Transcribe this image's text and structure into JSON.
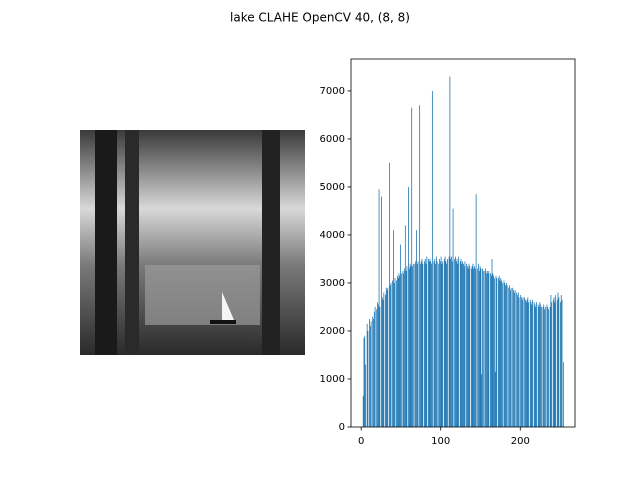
{
  "chart_data": {
    "type": "histogram",
    "title": "lake CLAHE OpenCV 40, (8, 8)",
    "color": "#1f77b4",
    "xlim": [
      -12.8,
      268.8
    ],
    "ylim": [
      0,
      7665
    ],
    "xticks": [
      0,
      100,
      200
    ],
    "yticks": [
      0,
      1000,
      2000,
      3000,
      4000,
      5000,
      6000,
      7000
    ],
    "bins": [
      0,
      1,
      2,
      3,
      4,
      5,
      6,
      7,
      8,
      9,
      10,
      11,
      12,
      13,
      14,
      15,
      16,
      17,
      18,
      19,
      20,
      21,
      22,
      23,
      24,
      25,
      26,
      27,
      28,
      29,
      30,
      31,
      32,
      33,
      34,
      35,
      36,
      37,
      38,
      39,
      40,
      41,
      42,
      43,
      44,
      45,
      46,
      47,
      48,
      49,
      50,
      51,
      52,
      53,
      54,
      55,
      56,
      57,
      58,
      59,
      60,
      61,
      62,
      63,
      64,
      65,
      66,
      67,
      68,
      69,
      70,
      71,
      72,
      73,
      74,
      75,
      76,
      77,
      78,
      79,
      80,
      81,
      82,
      83,
      84,
      85,
      86,
      87,
      88,
      89,
      90,
      91,
      92,
      93,
      94,
      95,
      96,
      97,
      98,
      99,
      100,
      101,
      102,
      103,
      104,
      105,
      106,
      107,
      108,
      109,
      110,
      111,
      112,
      113,
      114,
      115,
      116,
      117,
      118,
      119,
      120,
      121,
      122,
      123,
      124,
      125,
      126,
      127,
      128,
      129,
      130,
      131,
      132,
      133,
      134,
      135,
      136,
      137,
      138,
      139,
      140,
      141,
      142,
      143,
      144,
      145,
      146,
      147,
      148,
      149,
      150,
      151,
      152,
      153,
      154,
      155,
      156,
      157,
      158,
      159,
      160,
      161,
      162,
      163,
      164,
      165,
      166,
      167,
      168,
      169,
      170,
      171,
      172,
      173,
      174,
      175,
      176,
      177,
      178,
      179,
      180,
      181,
      182,
      183,
      184,
      185,
      186,
      187,
      188,
      189,
      190,
      191,
      192,
      193,
      194,
      195,
      196,
      197,
      198,
      199,
      200,
      201,
      202,
      203,
      204,
      205,
      206,
      207,
      208,
      209,
      210,
      211,
      212,
      213,
      214,
      215,
      216,
      217,
      218,
      219,
      220,
      221,
      222,
      223,
      224,
      225,
      226,
      227,
      228,
      229,
      230,
      231,
      232,
      233,
      234,
      235,
      236,
      237,
      238,
      239,
      240,
      241,
      242,
      243,
      244,
      245,
      246,
      247,
      248,
      249,
      250,
      251,
      252,
      253,
      254,
      255,
      256
    ],
    "counts": [
      0,
      0,
      650,
      1850,
      1900,
      1300,
      0,
      2150,
      2000,
      0,
      2250,
      2100,
      2200,
      0,
      2300,
      2250,
      2400,
      2500,
      0,
      2450,
      2600,
      2550,
      4950,
      2500,
      0,
      4800,
      2700,
      2650,
      2800,
      0,
      2750,
      2900,
      2850,
      2900,
      0,
      5500,
      2950,
      3000,
      0,
      3050,
      4100,
      3000,
      3100,
      0,
      3050,
      3150,
      3100,
      3200,
      3150,
      3800,
      3200,
      0,
      3250,
      3200,
      3300,
      4200,
      3250,
      3350,
      0,
      5000,
      3300,
      3400,
      3350,
      6650,
      3350,
      3400,
      0,
      3400,
      3450,
      4100,
      3400,
      3450,
      0,
      6700,
      3400,
      3450,
      3500,
      3400,
      0,
      3450,
      3500,
      3400,
      3550,
      0,
      3500,
      3450,
      3500,
      3450,
      3400,
      7000,
      0,
      3450,
      3500,
      3400,
      3550,
      3450,
      0,
      3400,
      3500,
      3450,
      3550,
      3400,
      3450,
      0,
      3500,
      3550,
      3450,
      3400,
      3500,
      0,
      3550,
      7300,
      3500,
      3550,
      3450,
      4550,
      0,
      3500,
      3550,
      3450,
      3500,
      3400,
      3550,
      0,
      3450,
      3500,
      3400,
      3450,
      3400,
      3350,
      3450,
      0,
      3400,
      3350,
      3300,
      3400,
      3350,
      0,
      3300,
      3350,
      3400,
      3300,
      3350,
      3300,
      4850,
      0,
      3300,
      3400,
      3250,
      3350,
      3300,
      1100,
      3300,
      3250,
      0,
      3250,
      3300,
      3200,
      3250,
      3200,
      3250,
      0,
      3200,
      3150,
      3500,
      3200,
      3150,
      3100,
      1150,
      3150,
      3100,
      0,
      3100,
      3150,
      3050,
      3100,
      3050,
      3000,
      0,
      3050,
      3000,
      2950,
      3000,
      2950,
      0,
      2900,
      2950,
      2850,
      2900,
      0,
      2900,
      2850,
      2800,
      2850,
      0,
      2800,
      2750,
      2800,
      2700,
      0,
      2750,
      2700,
      2650,
      2700,
      0,
      2700,
      2650,
      2600,
      2650,
      2700,
      2600,
      0,
      2650,
      2600,
      2550,
      2650,
      0,
      2600,
      2550,
      2500,
      2600,
      0,
      2550,
      2500,
      2600,
      2550,
      2500,
      0,
      2500,
      2550,
      2450,
      2500,
      0,
      2550,
      2500,
      2450,
      0,
      2500,
      2750,
      2600,
      0,
      2650,
      2700,
      2600,
      2750,
      0,
      2650,
      2800,
      2700,
      0,
      2600,
      2750,
      2650,
      0,
      1350,
      0
    ]
  }
}
